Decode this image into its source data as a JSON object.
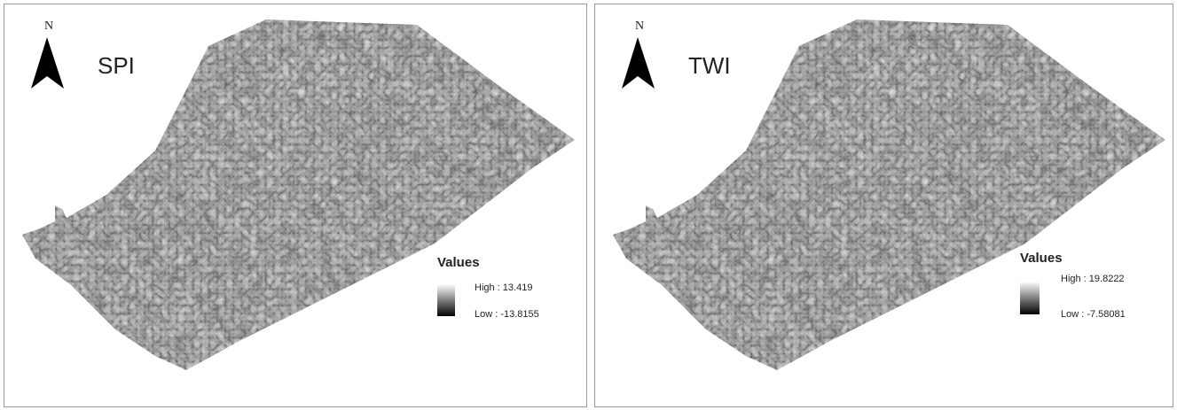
{
  "panels": [
    {
      "north": "N",
      "title": "SPI",
      "legend": {
        "title": "Values",
        "high": "High : 13.419",
        "low": "Low : -13.8155"
      }
    },
    {
      "north": "N",
      "title": "TWI",
      "legend": {
        "title": "Values",
        "high": "High : 19.8222",
        "low": "Low : -7.58081"
      }
    }
  ]
}
